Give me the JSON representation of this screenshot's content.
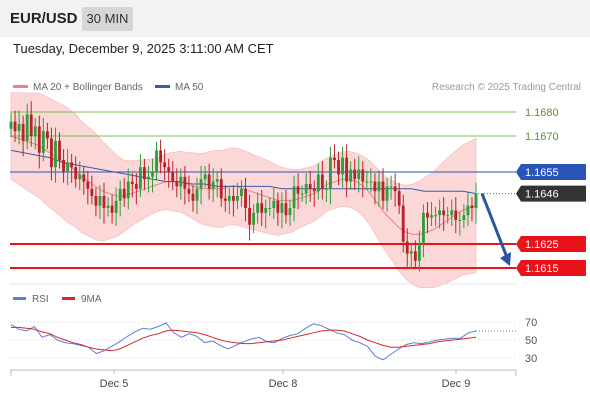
{
  "header": {
    "symbol": "EUR/USD",
    "timeframe": "30 MIN",
    "datetime": "Tuesday, December 9, 2025 3:11:00 AM CET"
  },
  "legend": {
    "ma20_label": "MA 20 + Bollinger Bands",
    "ma50_label": "MA 50",
    "copyright": "Research © 2025 Trading Central"
  },
  "rsi_legend": {
    "rsi_label": "RSI",
    "ma9_label": "9MA"
  },
  "colors": {
    "up_candle": "#2d9e3a",
    "down_candle": "#b8232a",
    "bollinger_fill": "#fbd7d7",
    "ma20": "#f08080",
    "ma50": "#3a5ba8",
    "support": "#e8141a",
    "resistance": "#7cbf4f",
    "pivot": "#2a55b8",
    "current_price": "#333333",
    "rsi": "#5a7fd6",
    "rsi_ma9": "#d42a2a"
  },
  "chart_data": [
    {
      "type": "candlestick",
      "title": "EUR/USD 30 MIN",
      "x_ticks": [
        "Dec 5",
        "Dec 8",
        "Dec 9"
      ],
      "ylim": [
        1.1612,
        1.1685
      ],
      "levels": [
        {
          "value": 1.168,
          "label": "1.1680",
          "kind": "resistance"
        },
        {
          "value": 1.167,
          "label": "1.1670",
          "kind": "resistance"
        },
        {
          "value": 1.1655,
          "label": "1.1655",
          "kind": "pivot"
        },
        {
          "value": 1.1646,
          "label": "1.1646",
          "kind": "current"
        },
        {
          "value": 1.1625,
          "label": "1.1625",
          "kind": "support"
        },
        {
          "value": 1.1615,
          "label": "1.1615",
          "kind": "support"
        }
      ],
      "current_price": 1.1646,
      "forecast": {
        "from": 1.1646,
        "to": 1.1615,
        "direction": "down"
      },
      "close_series": [
        1.1676,
        1.1672,
        1.1675,
        1.1668,
        1.1679,
        1.167,
        1.1674,
        1.1663,
        1.1672,
        1.1669,
        1.1657,
        1.1668,
        1.166,
        1.1655,
        1.1659,
        1.1657,
        1.1652,
        1.1654,
        1.1651,
        1.1648,
        1.1645,
        1.1641,
        1.1645,
        1.164,
        1.1641,
        1.1638,
        1.1643,
        1.1648,
        1.1644,
        1.1651,
        1.165,
        1.1648,
        1.1657,
        1.1652,
        1.1653,
        1.1655,
        1.1664,
        1.1659,
        1.1657,
        1.1655,
        1.1651,
        1.1649,
        1.1653,
        1.1648,
        1.1646,
        1.1643,
        1.1648,
        1.1652,
        1.1654,
        1.1648,
        1.1651,
        1.1652,
        1.1644,
        1.1643,
        1.1645,
        1.1643,
        1.1645,
        1.1648,
        1.164,
        1.1633,
        1.1638,
        1.1642,
        1.1638,
        1.164,
        1.164,
        1.1643,
        1.1638,
        1.1642,
        1.1637,
        1.164,
        1.1649,
        1.1646,
        1.1646,
        1.165,
        1.1648,
        1.1647,
        1.1654,
        1.1648,
        1.1648,
        1.1661,
        1.166,
        1.1654,
        1.1661,
        1.1651,
        1.1656,
        1.1652,
        1.1656,
        1.1651,
        1.1651,
        1.1651,
        1.1647,
        1.1651,
        1.1643,
        1.1649,
        1.1649,
        1.1647,
        1.1641,
        1.1626,
        1.1621,
        1.1622,
        1.1618,
        1.1625,
        1.1638,
        1.1636,
        1.1637,
        1.1637,
        1.1639,
        1.1637,
        1.1637,
        1.1639,
        1.1635,
        1.1635,
        1.1637,
        1.1641,
        1.164,
        1.1646
      ],
      "ma20": [
        1.167,
        1.1669,
        1.1668,
        1.1667,
        1.1666,
        1.1664,
        1.1662,
        1.166,
        1.1658,
        1.1656,
        1.1653,
        1.1651,
        1.1649,
        1.1647,
        1.1646,
        1.1645,
        1.1645,
        1.1646,
        1.1647,
        1.1648,
        1.1649,
        1.165,
        1.1651,
        1.1651,
        1.1651,
        1.165,
        1.1649,
        1.1648,
        1.1648,
        1.1648,
        1.1648,
        1.1649,
        1.1649,
        1.1648,
        1.1647,
        1.1646,
        1.1645,
        1.1644,
        1.1643,
        1.1643,
        1.1643,
        1.1644,
        1.1645,
        1.1646,
        1.1648,
        1.165,
        1.1651,
        1.1652,
        1.1652,
        1.1651,
        1.1649,
        1.1646,
        1.1642,
        1.1638,
        1.1635,
        1.1632,
        1.163,
        1.1629,
        1.1629,
        1.163,
        1.1631,
        1.1633,
        1.1635,
        1.1637,
        1.1639,
        1.164,
        1.1641
      ],
      "ma50": [
        1.1664,
        1.1663,
        1.1662,
        1.1661,
        1.1659,
        1.1658,
        1.1657,
        1.1656,
        1.1655,
        1.1654,
        1.1653,
        1.1652,
        1.1651,
        1.1651,
        1.165,
        1.165,
        1.1649,
        1.1649,
        1.1649,
        1.1649,
        1.1649,
        1.1648,
        1.1648,
        1.1648,
        1.1648,
        1.1648,
        1.1648,
        1.1648,
        1.1648,
        1.1648,
        1.1648,
        1.1648,
        1.1647,
        1.1647,
        1.1647,
        1.1647,
        1.1646
      ]
    },
    {
      "type": "line",
      "title": "RSI",
      "ylim": [
        20,
        80
      ],
      "y_ticks": [
        70,
        50,
        30
      ],
      "series": [
        {
          "name": "RSI",
          "values": [
            67,
            62,
            60,
            65,
            53,
            56,
            50,
            47,
            46,
            44,
            42,
            35,
            38,
            43,
            48,
            54,
            59,
            63,
            62,
            65,
            69,
            58,
            53,
            57,
            54,
            47,
            49,
            44,
            40,
            44,
            48,
            51,
            53,
            48,
            47,
            52,
            55,
            57,
            63,
            68,
            66,
            62,
            58,
            56,
            50,
            47,
            43,
            32,
            28,
            34,
            40,
            45,
            47,
            46,
            48,
            50,
            51,
            52,
            52,
            58,
            60
          ]
        },
        {
          "name": "9MA",
          "values": [
            64,
            64,
            63,
            62,
            59,
            57,
            53,
            50,
            47,
            45,
            42,
            40,
            39,
            38,
            40,
            44,
            48,
            52,
            55,
            57,
            60,
            61,
            60,
            59,
            58,
            56,
            53,
            50,
            48,
            47,
            46,
            46,
            47,
            48,
            49,
            50,
            52,
            54,
            56,
            58,
            60,
            61,
            61,
            60,
            57,
            54,
            50,
            47,
            44,
            42,
            42,
            43,
            44,
            45,
            46,
            48,
            49,
            50,
            51,
            52,
            53
          ]
        }
      ]
    }
  ]
}
